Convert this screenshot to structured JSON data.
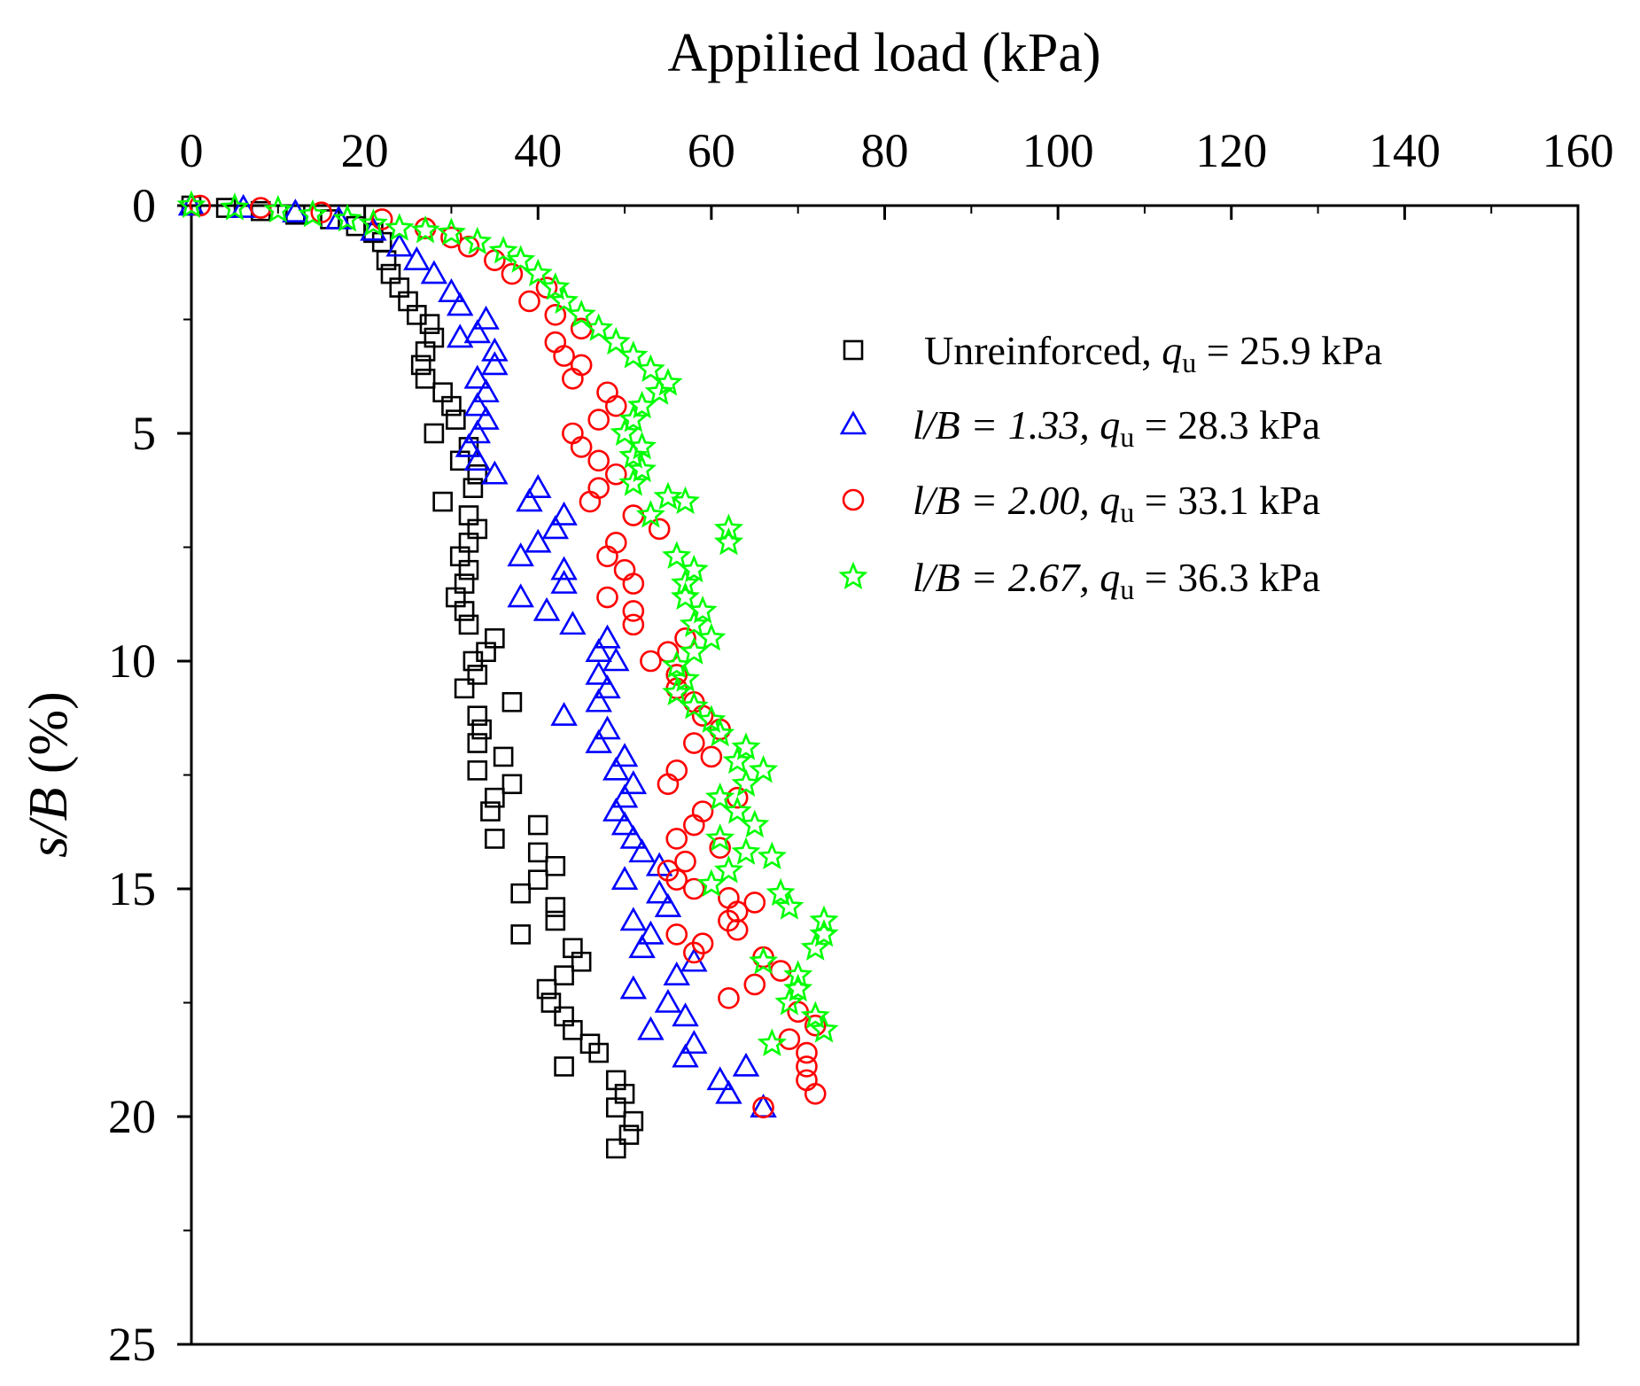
{
  "chart_data": {
    "type": "scatter",
    "title": "",
    "xlabel": "Appilied load (kPa)",
    "ylabel_italic": "s/B",
    "ylabel_rest": " (%)",
    "xlim": [
      0,
      160
    ],
    "ylim": [
      0,
      25
    ],
    "y_inverted": true,
    "x_axis_position": "top",
    "xticks": [
      0,
      20,
      40,
      60,
      80,
      100,
      120,
      140,
      160
    ],
    "yticks": [
      0,
      5,
      10,
      15,
      20,
      25
    ],
    "legend_position": "top-right",
    "series": [
      {
        "name": "Unreinforced",
        "legend_prefix": "Unreinforced,  ",
        "qu_text": " = 25.9 kPa",
        "qu_symbol_main": "q",
        "qu_symbol_sub": "u",
        "marker": "square",
        "color": "#000000",
        "points": [
          [
            0,
            0
          ],
          [
            4,
            0.05
          ],
          [
            8,
            0.12
          ],
          [
            12,
            0.2
          ],
          [
            16,
            0.3
          ],
          [
            19,
            0.45
          ],
          [
            21,
            0.6
          ],
          [
            22,
            0.8
          ],
          [
            22.5,
            1.2
          ],
          [
            23,
            1.5
          ],
          [
            24,
            1.8
          ],
          [
            25,
            2.1
          ],
          [
            26,
            2.4
          ],
          [
            27.5,
            2.6
          ],
          [
            28,
            2.9
          ],
          [
            27,
            3.2
          ],
          [
            26.5,
            3.5
          ],
          [
            27,
            3.8
          ],
          [
            29,
            4.1
          ],
          [
            30,
            4.4
          ],
          [
            30.5,
            4.7
          ],
          [
            28,
            5.0
          ],
          [
            32,
            5.3
          ],
          [
            31,
            5.6
          ],
          [
            33,
            5.9
          ],
          [
            32.5,
            6.2
          ],
          [
            29,
            6.5
          ],
          [
            32,
            6.8
          ],
          [
            33,
            7.1
          ],
          [
            32,
            7.4
          ],
          [
            31,
            7.7
          ],
          [
            32,
            8.0
          ],
          [
            31.5,
            8.3
          ],
          [
            30.5,
            8.6
          ],
          [
            31.5,
            8.9
          ],
          [
            32,
            9.2
          ],
          [
            35,
            9.5
          ],
          [
            34,
            9.8
          ],
          [
            32.5,
            10.0
          ],
          [
            33,
            10.3
          ],
          [
            31.5,
            10.6
          ],
          [
            37,
            10.9
          ],
          [
            33,
            11.2
          ],
          [
            33.5,
            11.5
          ],
          [
            33,
            11.8
          ],
          [
            36,
            12.1
          ],
          [
            33,
            12.4
          ],
          [
            37,
            12.7
          ],
          [
            35,
            13.0
          ],
          [
            34.5,
            13.3
          ],
          [
            40,
            13.6
          ],
          [
            35,
            13.9
          ],
          [
            40,
            14.2
          ],
          [
            42,
            14.5
          ],
          [
            40,
            14.8
          ],
          [
            38,
            15.1
          ],
          [
            42,
            15.4
          ],
          [
            42,
            15.7
          ],
          [
            38,
            16.0
          ],
          [
            44,
            16.3
          ],
          [
            45,
            16.6
          ],
          [
            43,
            16.9
          ],
          [
            41,
            17.2
          ],
          [
            41.5,
            17.5
          ],
          [
            43,
            17.8
          ],
          [
            44,
            18.1
          ],
          [
            46,
            18.4
          ],
          [
            47,
            18.6
          ],
          [
            43,
            18.9
          ],
          [
            49,
            19.2
          ],
          [
            50,
            19.5
          ],
          [
            49,
            19.8
          ],
          [
            51,
            20.1
          ],
          [
            50.5,
            20.4
          ],
          [
            49,
            20.7
          ]
        ]
      },
      {
        "name": "l/B = 1.33",
        "legend_prefix": "l/B = 1.33,  ",
        "qu_text": " = 28.3 kPa",
        "qu_symbol_main": "q",
        "qu_symbol_sub": "u",
        "marker": "triangle",
        "color": "#0000ff",
        "points": [
          [
            0,
            0
          ],
          [
            6,
            0.05
          ],
          [
            12,
            0.15
          ],
          [
            17,
            0.3
          ],
          [
            21,
            0.55
          ],
          [
            24,
            0.9
          ],
          [
            26,
            1.2
          ],
          [
            28,
            1.5
          ],
          [
            30,
            1.9
          ],
          [
            31,
            2.2
          ],
          [
            34,
            2.5
          ],
          [
            33,
            2.8
          ],
          [
            31,
            2.9
          ],
          [
            35,
            3.2
          ],
          [
            35,
            3.5
          ],
          [
            33,
            3.8
          ],
          [
            34,
            4.1
          ],
          [
            33,
            4.4
          ],
          [
            34,
            4.7
          ],
          [
            33,
            5.0
          ],
          [
            32,
            5.3
          ],
          [
            33,
            5.6
          ],
          [
            35,
            5.9
          ],
          [
            40,
            6.2
          ],
          [
            39,
            6.5
          ],
          [
            43,
            6.8
          ],
          [
            42,
            7.1
          ],
          [
            40,
            7.4
          ],
          [
            38,
            7.7
          ],
          [
            43,
            8.0
          ],
          [
            43,
            8.3
          ],
          [
            38,
            8.6
          ],
          [
            41,
            8.9
          ],
          [
            44,
            9.2
          ],
          [
            48,
            9.5
          ],
          [
            47,
            9.8
          ],
          [
            49,
            10.0
          ],
          [
            47,
            10.3
          ],
          [
            48,
            10.6
          ],
          [
            47,
            10.9
          ],
          [
            43,
            11.2
          ],
          [
            48,
            11.5
          ],
          [
            47,
            11.8
          ],
          [
            50,
            12.1
          ],
          [
            49,
            12.4
          ],
          [
            51,
            12.7
          ],
          [
            50,
            13.0
          ],
          [
            49,
            13.3
          ],
          [
            50,
            13.6
          ],
          [
            51,
            13.9
          ],
          [
            52,
            14.2
          ],
          [
            54,
            14.5
          ],
          [
            50,
            14.8
          ],
          [
            54,
            15.1
          ],
          [
            55,
            15.4
          ],
          [
            51,
            15.7
          ],
          [
            53,
            16.0
          ],
          [
            52,
            16.3
          ],
          [
            58,
            16.6
          ],
          [
            56,
            16.9
          ],
          [
            51,
            17.2
          ],
          [
            55,
            17.5
          ],
          [
            57,
            17.8
          ],
          [
            53,
            18.1
          ],
          [
            58,
            18.4
          ],
          [
            57,
            18.7
          ],
          [
            64,
            18.9
          ],
          [
            61,
            19.2
          ],
          [
            62,
            19.5
          ],
          [
            66,
            19.8
          ]
        ]
      },
      {
        "name": "l/B = 2.00",
        "legend_prefix": "l/B = 2.00,  ",
        "qu_text": " = 33.1 kPa",
        "qu_symbol_main": "q",
        "qu_symbol_sub": "u",
        "marker": "circle",
        "color": "#ff0000",
        "points": [
          [
            1,
            0
          ],
          [
            8,
            0.05
          ],
          [
            15,
            0.15
          ],
          [
            22,
            0.3
          ],
          [
            27,
            0.5
          ],
          [
            30,
            0.7
          ],
          [
            32,
            0.9
          ],
          [
            35,
            1.2
          ],
          [
            37,
            1.5
          ],
          [
            41,
            1.8
          ],
          [
            39,
            2.1
          ],
          [
            42,
            2.4
          ],
          [
            45,
            2.7
          ],
          [
            42,
            3.0
          ],
          [
            43,
            3.3
          ],
          [
            45,
            3.5
          ],
          [
            44,
            3.8
          ],
          [
            48,
            4.1
          ],
          [
            49,
            4.4
          ],
          [
            47,
            4.7
          ],
          [
            44,
            5.0
          ],
          [
            45,
            5.3
          ],
          [
            47,
            5.6
          ],
          [
            49,
            5.9
          ],
          [
            47,
            6.2
          ],
          [
            46,
            6.5
          ],
          [
            51,
            6.8
          ],
          [
            54,
            7.1
          ],
          [
            49,
            7.4
          ],
          [
            48,
            7.7
          ],
          [
            50,
            8.0
          ],
          [
            51,
            8.3
          ],
          [
            48,
            8.6
          ],
          [
            51,
            8.9
          ],
          [
            51,
            9.2
          ],
          [
            57,
            9.5
          ],
          [
            55,
            9.8
          ],
          [
            53,
            10.0
          ],
          [
            56,
            10.3
          ],
          [
            56,
            10.6
          ],
          [
            58,
            10.9
          ],
          [
            59,
            11.2
          ],
          [
            61,
            11.5
          ],
          [
            58,
            11.8
          ],
          [
            60,
            12.1
          ],
          [
            56,
            12.4
          ],
          [
            55,
            12.7
          ],
          [
            63,
            13.0
          ],
          [
            59,
            13.3
          ],
          [
            58,
            13.6
          ],
          [
            56,
            13.9
          ],
          [
            61,
            14.1
          ],
          [
            57,
            14.4
          ],
          [
            55,
            14.6
          ],
          [
            56,
            14.8
          ],
          [
            58,
            15.0
          ],
          [
            62,
            15.2
          ],
          [
            65,
            15.3
          ],
          [
            63,
            15.5
          ],
          [
            62,
            15.7
          ],
          [
            63,
            15.9
          ],
          [
            56,
            16.0
          ],
          [
            59,
            16.2
          ],
          [
            58,
            16.4
          ],
          [
            66,
            16.5
          ],
          [
            68,
            16.8
          ],
          [
            65,
            17.1
          ],
          [
            62,
            17.4
          ],
          [
            70,
            17.7
          ],
          [
            72,
            18.0
          ],
          [
            69,
            18.3
          ],
          [
            71,
            18.6
          ],
          [
            71,
            18.9
          ],
          [
            71,
            19.2
          ],
          [
            72,
            19.5
          ],
          [
            66,
            19.8
          ]
        ]
      },
      {
        "name": "l/B = 2.67",
        "legend_prefix": "l/B = 2.67,  ",
        "qu_text": " = 36.3 kPa",
        "qu_symbol_main": "q",
        "qu_symbol_sub": "u",
        "marker": "star",
        "color": "#00ff00",
        "points": [
          [
            0,
            0
          ],
          [
            5,
            0.05
          ],
          [
            10,
            0.1
          ],
          [
            14,
            0.2
          ],
          [
            18,
            0.3
          ],
          [
            21,
            0.4
          ],
          [
            24,
            0.5
          ],
          [
            27,
            0.55
          ],
          [
            30,
            0.6
          ],
          [
            33,
            0.8
          ],
          [
            36,
            1.0
          ],
          [
            38,
            1.2
          ],
          [
            40,
            1.5
          ],
          [
            42,
            1.8
          ],
          [
            43,
            2.1
          ],
          [
            45,
            2.4
          ],
          [
            47,
            2.7
          ],
          [
            49,
            3.0
          ],
          [
            51,
            3.3
          ],
          [
            53,
            3.6
          ],
          [
            55,
            3.9
          ],
          [
            54,
            4.1
          ],
          [
            52,
            4.4
          ],
          [
            51,
            4.7
          ],
          [
            50,
            5.0
          ],
          [
            52,
            5.3
          ],
          [
            51,
            5.5
          ],
          [
            52,
            5.8
          ],
          [
            51,
            6.1
          ],
          [
            55,
            6.4
          ],
          [
            57,
            6.5
          ],
          [
            53,
            6.8
          ],
          [
            62,
            7.1
          ],
          [
            62,
            7.4
          ],
          [
            56,
            7.7
          ],
          [
            58,
            8.0
          ],
          [
            57,
            8.3
          ],
          [
            57,
            8.6
          ],
          [
            59,
            8.9
          ],
          [
            58,
            9.2
          ],
          [
            60,
            9.5
          ],
          [
            58,
            9.8
          ],
          [
            56,
            10.1
          ],
          [
            57,
            10.4
          ],
          [
            56,
            10.7
          ],
          [
            58,
            11.0
          ],
          [
            60,
            11.3
          ],
          [
            61,
            11.6
          ],
          [
            64,
            11.9
          ],
          [
            63,
            12.2
          ],
          [
            66,
            12.4
          ],
          [
            64,
            12.7
          ],
          [
            61,
            13.0
          ],
          [
            63,
            13.3
          ],
          [
            65,
            13.6
          ],
          [
            61,
            13.9
          ],
          [
            64,
            14.2
          ],
          [
            67,
            14.3
          ],
          [
            62,
            14.6
          ],
          [
            60,
            14.9
          ],
          [
            68,
            15.1
          ],
          [
            69,
            15.4
          ],
          [
            73,
            15.7
          ],
          [
            73,
            16.0
          ],
          [
            72,
            16.3
          ],
          [
            66,
            16.6
          ],
          [
            70,
            16.9
          ],
          [
            70,
            17.2
          ],
          [
            69,
            17.5
          ],
          [
            72,
            17.8
          ],
          [
            73,
            18.1
          ],
          [
            67,
            18.4
          ]
        ]
      }
    ]
  }
}
